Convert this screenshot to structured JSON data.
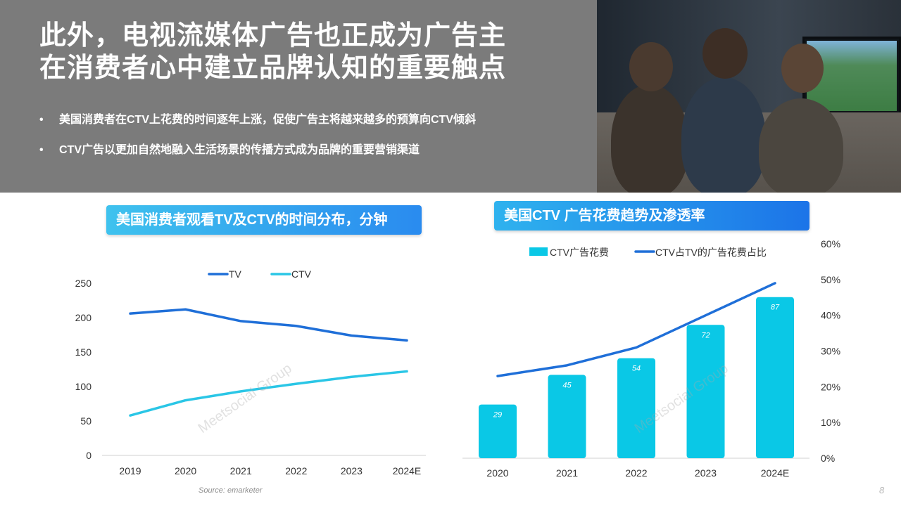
{
  "header": {
    "title_line1": "此外，电视流媒体广告也正成为广告主",
    "title_line2": "在消费者心中建立品牌认知的重要触点",
    "bullets": [
      "美国消费者在CTV上花费的时间逐年上涨，促使广告主将越来越多的预算向CTV倾斜",
      "CTV广告以更加自然地融入生活场景的传播方式成为品牌的重要营销渠道"
    ]
  },
  "watermark": "Meetsocial Group",
  "source": "Source: emarketer",
  "page_number": "8",
  "colors": {
    "band": "#7b7b7b",
    "tv_line": "#1f6fd8",
    "ctv_line": "#2ac6e6",
    "ctv_bar": "#0ac8e6",
    "share_line": "#1f6fd8"
  },
  "chart_data": [
    {
      "type": "line",
      "title": "美国消费者观看TV及CTV的时间分布，分钟",
      "categories": [
        "2019",
        "2020",
        "2021",
        "2022",
        "2023",
        "2024E"
      ],
      "series": [
        {
          "name": "TV",
          "values": [
            206,
            212,
            195,
            188,
            174,
            167
          ]
        },
        {
          "name": "CTV",
          "values": [
            58,
            80,
            93,
            104,
            114,
            122
          ]
        }
      ],
      "yticks": [
        "0",
        "50",
        "100",
        "150",
        "200",
        "250"
      ],
      "ylim": [
        0,
        250
      ],
      "legend": "top",
      "grid": false
    },
    {
      "type": "bar",
      "title": "美国CTV 广告花费趋势及渗透率",
      "categories": [
        "2020",
        "2021",
        "2022",
        "2023",
        "2024E"
      ],
      "series": [
        {
          "name": "CTV广告花费",
          "values": [
            29,
            45,
            54,
            72,
            87
          ],
          "type": "bar"
        },
        {
          "name": "CTV占TV的广告花费占比",
          "values": [
            23,
            26,
            31,
            40,
            49
          ],
          "type": "line",
          "axis": "right"
        }
      ],
      "data_labels": [
        "29",
        "45",
        "54",
        "72",
        "87"
      ],
      "y2ticks": [
        "0%",
        "10%",
        "20%",
        "30%",
        "40%",
        "50%",
        "60%"
      ],
      "ylim": [
        0,
        100
      ],
      "y2lim": [
        0,
        60
      ],
      "legend": "top",
      "grid": false
    }
  ]
}
